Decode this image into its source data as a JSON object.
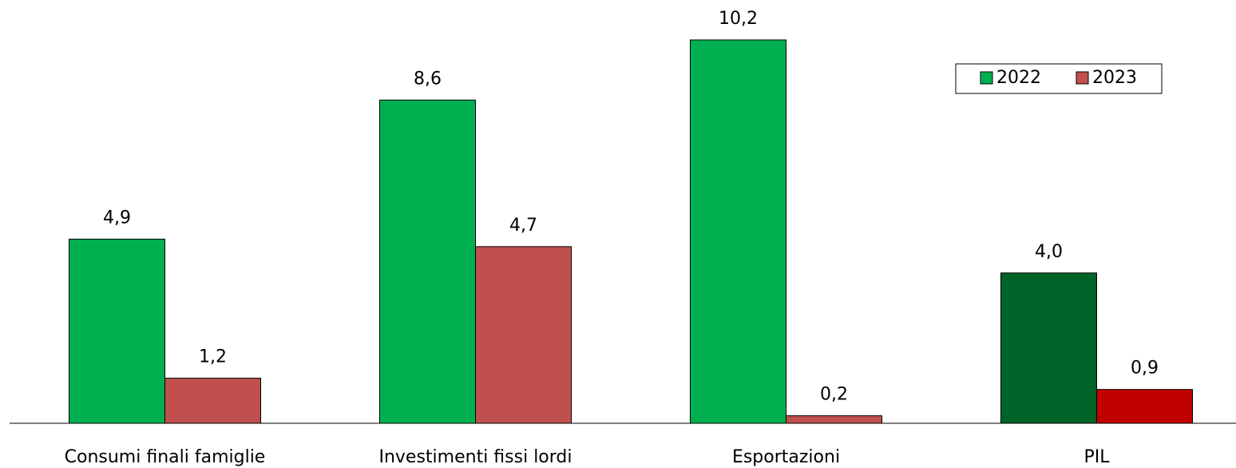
{
  "chart_data": {
    "type": "bar",
    "categories": [
      "Consumi finali famiglie",
      "Investimenti fissi lordi",
      "Esportazioni",
      "PIL"
    ],
    "series": [
      {
        "name": "2022",
        "color": "#00b050",
        "colors": [
          "#00b050",
          "#00b050",
          "#00b050",
          "#006428"
        ],
        "values": [
          4.9,
          8.6,
          10.2,
          4.0
        ],
        "value_labels": [
          "4,9",
          "8,6",
          "10,2",
          "4,0"
        ]
      },
      {
        "name": "2023",
        "color": "#c0504d",
        "colors": [
          "#c0504d",
          "#c0504d",
          "#c0504d",
          "#c00000"
        ],
        "values": [
          1.2,
          4.7,
          0.2,
          0.9
        ],
        "value_labels": [
          "1,2",
          "4,7",
          "0,2",
          "0,9"
        ]
      }
    ],
    "legend": "upper right"
  }
}
